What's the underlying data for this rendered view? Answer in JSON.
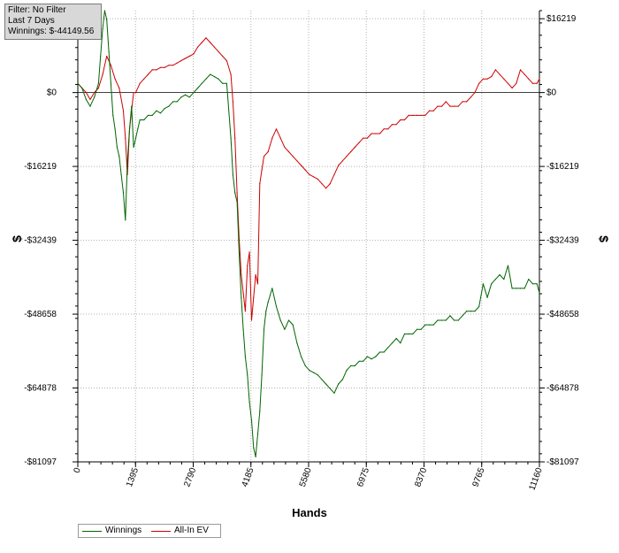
{
  "filter_box": {
    "line1": "Filter: No Filter",
    "line2": "Last  7 Days",
    "line3": "Winnings: $-44149.56"
  },
  "chart_data": {
    "type": "line",
    "xlabel": "Hands",
    "ylabel_left": "$",
    "ylabel_right": "$",
    "xlim": [
      0,
      11160
    ],
    "ylim": [
      -81097,
      18000
    ],
    "x_ticks": [
      0,
      1395,
      2790,
      4185,
      5580,
      6975,
      8370,
      9765,
      11160
    ],
    "y_ticks": [
      16219,
      0,
      -16219,
      -32439,
      -48658,
      -64878,
      -81097
    ],
    "x_tick_labels": [
      "0",
      "1395",
      "2790",
      "4185",
      "5580",
      "6975",
      "8370",
      "9765",
      "11160"
    ],
    "y_tick_labels": [
      "$16219",
      "$0",
      "-$16219",
      "-$32439",
      "-$48658",
      "-$64878",
      "-$81097"
    ],
    "grid": true,
    "legend_position": "bottom-left",
    "series": [
      {
        "name": "Winnings",
        "color": "#006400",
        "x": [
          0,
          100,
          200,
          300,
          400,
          500,
          550,
          600,
          650,
          700,
          750,
          800,
          850,
          900,
          950,
          1000,
          1050,
          1100,
          1150,
          1200,
          1250,
          1300,
          1350,
          1400,
          1450,
          1500,
          1600,
          1700,
          1800,
          1900,
          2000,
          2100,
          2200,
          2300,
          2400,
          2500,
          2600,
          2700,
          2800,
          2900,
          3000,
          3100,
          3200,
          3300,
          3400,
          3500,
          3600,
          3700,
          3750,
          3800,
          3850,
          3900,
          3950,
          4000,
          4050,
          4100,
          4150,
          4200,
          4250,
          4300,
          4350,
          4400,
          4450,
          4500,
          4550,
          4600,
          4700,
          4800,
          4900,
          5000,
          5100,
          5200,
          5300,
          5400,
          5500,
          5600,
          5700,
          5800,
          5900,
          6000,
          6100,
          6200,
          6300,
          6400,
          6500,
          6600,
          6700,
          6800,
          6900,
          7000,
          7100,
          7200,
          7300,
          7400,
          7500,
          7600,
          7700,
          7800,
          7900,
          8000,
          8100,
          8200,
          8300,
          8400,
          8500,
          8600,
          8700,
          8800,
          8900,
          9000,
          9100,
          9200,
          9300,
          9400,
          9500,
          9600,
          9700,
          9800,
          9900,
          10000,
          10100,
          10200,
          10300,
          10400,
          10500,
          10600,
          10700,
          10800,
          10900,
          11000,
          11100,
          11160
        ],
        "y": [
          2000,
          1000,
          -1500,
          -3000,
          -1000,
          2000,
          8000,
          14000,
          18000,
          16000,
          9000,
          2000,
          -5000,
          -8000,
          -12000,
          -14000,
          -18000,
          -22000,
          -28000,
          -15000,
          -8000,
          -3000,
          -12000,
          -10000,
          -8000,
          -6000,
          -6000,
          -5000,
          -5000,
          -4000,
          -4500,
          -3500,
          -3000,
          -2000,
          -2000,
          -1000,
          -500,
          -1000,
          0,
          1000,
          2000,
          3000,
          4000,
          3500,
          3000,
          2000,
          2000,
          -10000,
          -18000,
          -22000,
          -24000,
          -35000,
          -45000,
          -52000,
          -58000,
          -62000,
          -68000,
          -72000,
          -78000,
          -80000,
          -75000,
          -70000,
          -62000,
          -52000,
          -48000,
          -46000,
          -43000,
          -47000,
          -50000,
          -52000,
          -50000,
          -51000,
          -55000,
          -58000,
          -60000,
          -61000,
          -61500,
          -62000,
          -63000,
          -64000,
          -65000,
          -66000,
          -64000,
          -63000,
          -61000,
          -60000,
          -60000,
          -59000,
          -59000,
          -58000,
          -58500,
          -58000,
          -57000,
          -57000,
          -56000,
          -55000,
          -54000,
          -55000,
          -53000,
          -53000,
          -53000,
          -52000,
          -52000,
          -51000,
          -51000,
          -51000,
          -50000,
          -50000,
          -50000,
          -49000,
          -50000,
          -50000,
          -49000,
          -48000,
          -48000,
          -48000,
          -47000,
          -42000,
          -45000,
          -42000,
          -41000,
          -40000,
          -41000,
          -38000,
          -43000,
          -43000,
          -43000,
          -43000,
          -41000,
          -42000,
          -42000,
          -44000
        ]
      },
      {
        "name": "All-In EV",
        "color": "#cc0000",
        "x": [
          0,
          100,
          200,
          300,
          400,
          500,
          600,
          700,
          800,
          900,
          1000,
          1100,
          1150,
          1200,
          1250,
          1300,
          1350,
          1400,
          1500,
          1600,
          1700,
          1800,
          1900,
          2000,
          2100,
          2200,
          2300,
          2400,
          2500,
          2600,
          2700,
          2800,
          2900,
          3000,
          3100,
          3200,
          3300,
          3400,
          3500,
          3600,
          3700,
          3750,
          3800,
          3850,
          3900,
          3950,
          4000,
          4050,
          4100,
          4150,
          4200,
          4250,
          4300,
          4350,
          4400,
          4450,
          4500,
          4600,
          4700,
          4800,
          4900,
          5000,
          5100,
          5200,
          5300,
          5400,
          5500,
          5600,
          5700,
          5800,
          5900,
          6000,
          6100,
          6200,
          6300,
          6400,
          6500,
          6600,
          6700,
          6800,
          6900,
          7000,
          7100,
          7200,
          7300,
          7400,
          7500,
          7600,
          7700,
          7800,
          7900,
          8000,
          8100,
          8200,
          8300,
          8400,
          8500,
          8600,
          8700,
          8800,
          8900,
          9000,
          9100,
          9200,
          9300,
          9400,
          9500,
          9600,
          9700,
          9800,
          9900,
          10000,
          10100,
          10200,
          10300,
          10400,
          10500,
          10600,
          10700,
          10800,
          10900,
          11000,
          11100,
          11160
        ],
        "y": [
          2000,
          1000,
          0,
          -1500,
          0,
          1000,
          4000,
          8000,
          6000,
          3000,
          1000,
          -4000,
          -10000,
          -18000,
          -8000,
          -4000,
          0,
          0,
          2000,
          3000,
          4000,
          5000,
          5000,
          5500,
          5500,
          6000,
          6000,
          6500,
          7000,
          7500,
          8000,
          8500,
          10000,
          11000,
          12000,
          11000,
          10000,
          9000,
          8000,
          7000,
          4000,
          -2000,
          -10000,
          -22000,
          -32000,
          -40000,
          -44000,
          -48000,
          -38000,
          -35000,
          -50000,
          -45000,
          -40000,
          -42000,
          -20000,
          -17000,
          -14000,
          -13000,
          -10000,
          -8000,
          -10000,
          -12000,
          -13000,
          -14000,
          -15000,
          -16000,
          -17000,
          -18000,
          -18500,
          -19000,
          -20000,
          -21000,
          -20000,
          -18000,
          -16000,
          -15000,
          -14000,
          -13000,
          -12000,
          -11000,
          -10000,
          -10000,
          -9000,
          -9000,
          -9000,
          -8000,
          -8000,
          -7000,
          -7000,
          -6000,
          -6000,
          -5000,
          -5000,
          -5000,
          -5000,
          -5000,
          -4000,
          -4000,
          -3000,
          -3000,
          -2000,
          -3000,
          -3000,
          -3000,
          -2000,
          -2000,
          -1000,
          0,
          2000,
          3000,
          3000,
          3500,
          5000,
          4000,
          3000,
          2000,
          1000,
          2000,
          5000,
          4000,
          3000,
          2000,
          2000,
          3000
        ]
      }
    ]
  }
}
